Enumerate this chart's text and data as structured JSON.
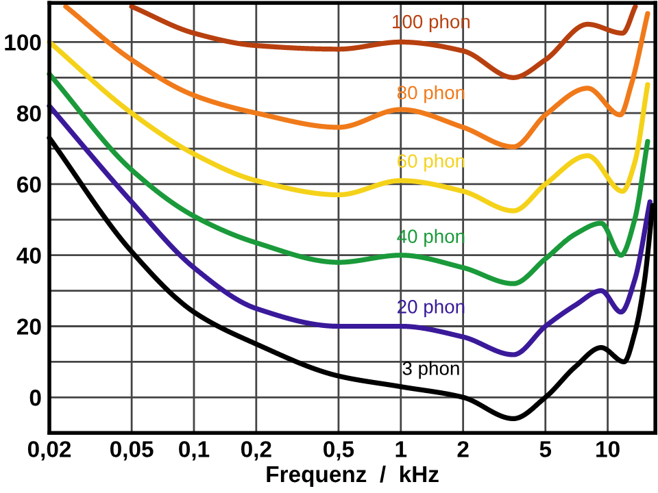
{
  "chart_data": {
    "type": "line",
    "xlabel": "Frequenz  /  kHz",
    "log": "x",
    "grid": true,
    "line_style": "solid",
    "marker": "none",
    "xlim": [
      0.02,
      17
    ],
    "ylim": [
      -10,
      111
    ],
    "xticks": [
      {
        "value": 0.02,
        "label": "0,02"
      },
      {
        "value": 0.05,
        "label": "0,05"
      },
      {
        "value": 0.1,
        "label": "0,1"
      },
      {
        "value": 0.2,
        "label": "0,2"
      },
      {
        "value": 0.5,
        "label": "0,5"
      },
      1,
      2,
      5,
      10
    ],
    "yticks": [
      0,
      {
        "value": 10,
        "label": null
      },
      20,
      {
        "value": 30,
        "label": null
      },
      40,
      {
        "value": 50,
        "label": null
      },
      60,
      {
        "value": 70,
        "label": null
      },
      80,
      {
        "value": 90,
        "label": null
      },
      100
    ],
    "series": [
      {
        "name": "100 phon",
        "color": "#b8400f",
        "x": [
          0.05,
          0.1,
          0.2,
          0.5,
          1,
          2,
          3.5,
          5,
          8,
          11.8,
          13.6
        ],
        "values": [
          110,
          102.5,
          99,
          98,
          100,
          97.5,
          90,
          95,
          105,
          102.5,
          110
        ]
      },
      {
        "name": "80 phon",
        "color": "#f07a1a",
        "x": [
          0.024,
          0.05,
          0.1,
          0.2,
          0.5,
          1,
          2,
          3.5,
          5,
          8,
          11.5,
          13,
          15.6
        ],
        "values": [
          110,
          95,
          85,
          80,
          76,
          81,
          76,
          70.5,
          79.5,
          87,
          79.5,
          88,
          108
        ]
      },
      {
        "name": "60 phon",
        "color": "#f5d21a",
        "x": [
          0.02,
          0.05,
          0.1,
          0.2,
          0.5,
          1,
          2,
          3.5,
          5,
          8,
          11.8,
          13.5,
          15.6
        ],
        "values": [
          100,
          80,
          68.5,
          61,
          57,
          61,
          58,
          52.5,
          60,
          68,
          58,
          66,
          88
        ]
      },
      {
        "name": "40 phon",
        "color": "#1a9a3a",
        "x": [
          0.02,
          0.05,
          0.1,
          0.2,
          0.5,
          1,
          2,
          3.5,
          5,
          7,
          9.3,
          11.6,
          13.5,
          15.6
        ],
        "values": [
          91,
          64,
          51,
          43.5,
          38,
          40,
          36.5,
          32,
          39,
          46,
          49,
          40,
          50,
          72
        ]
      },
      {
        "name": "20 phon",
        "color": "#3a1a9a",
        "x": [
          0.02,
          0.05,
          0.1,
          0.2,
          0.5,
          1,
          2,
          3.5,
          5,
          7,
          9.3,
          11.6,
          13.5,
          16
        ],
        "values": [
          82,
          55,
          36.5,
          25,
          20,
          20,
          17,
          12,
          20,
          26,
          30,
          24,
          33,
          55
        ]
      },
      {
        "name": "3 phon",
        "color": "#000000",
        "x": [
          0.02,
          0.05,
          0.1,
          0.2,
          0.5,
          1,
          2,
          3.5,
          5,
          7,
          9.3,
          12,
          13.5,
          15,
          16.5
        ],
        "values": [
          73,
          41,
          24,
          15,
          6,
          3,
          0,
          -6,
          0,
          8.7,
          14,
          10,
          18,
          32,
          54
        ]
      }
    ]
  }
}
